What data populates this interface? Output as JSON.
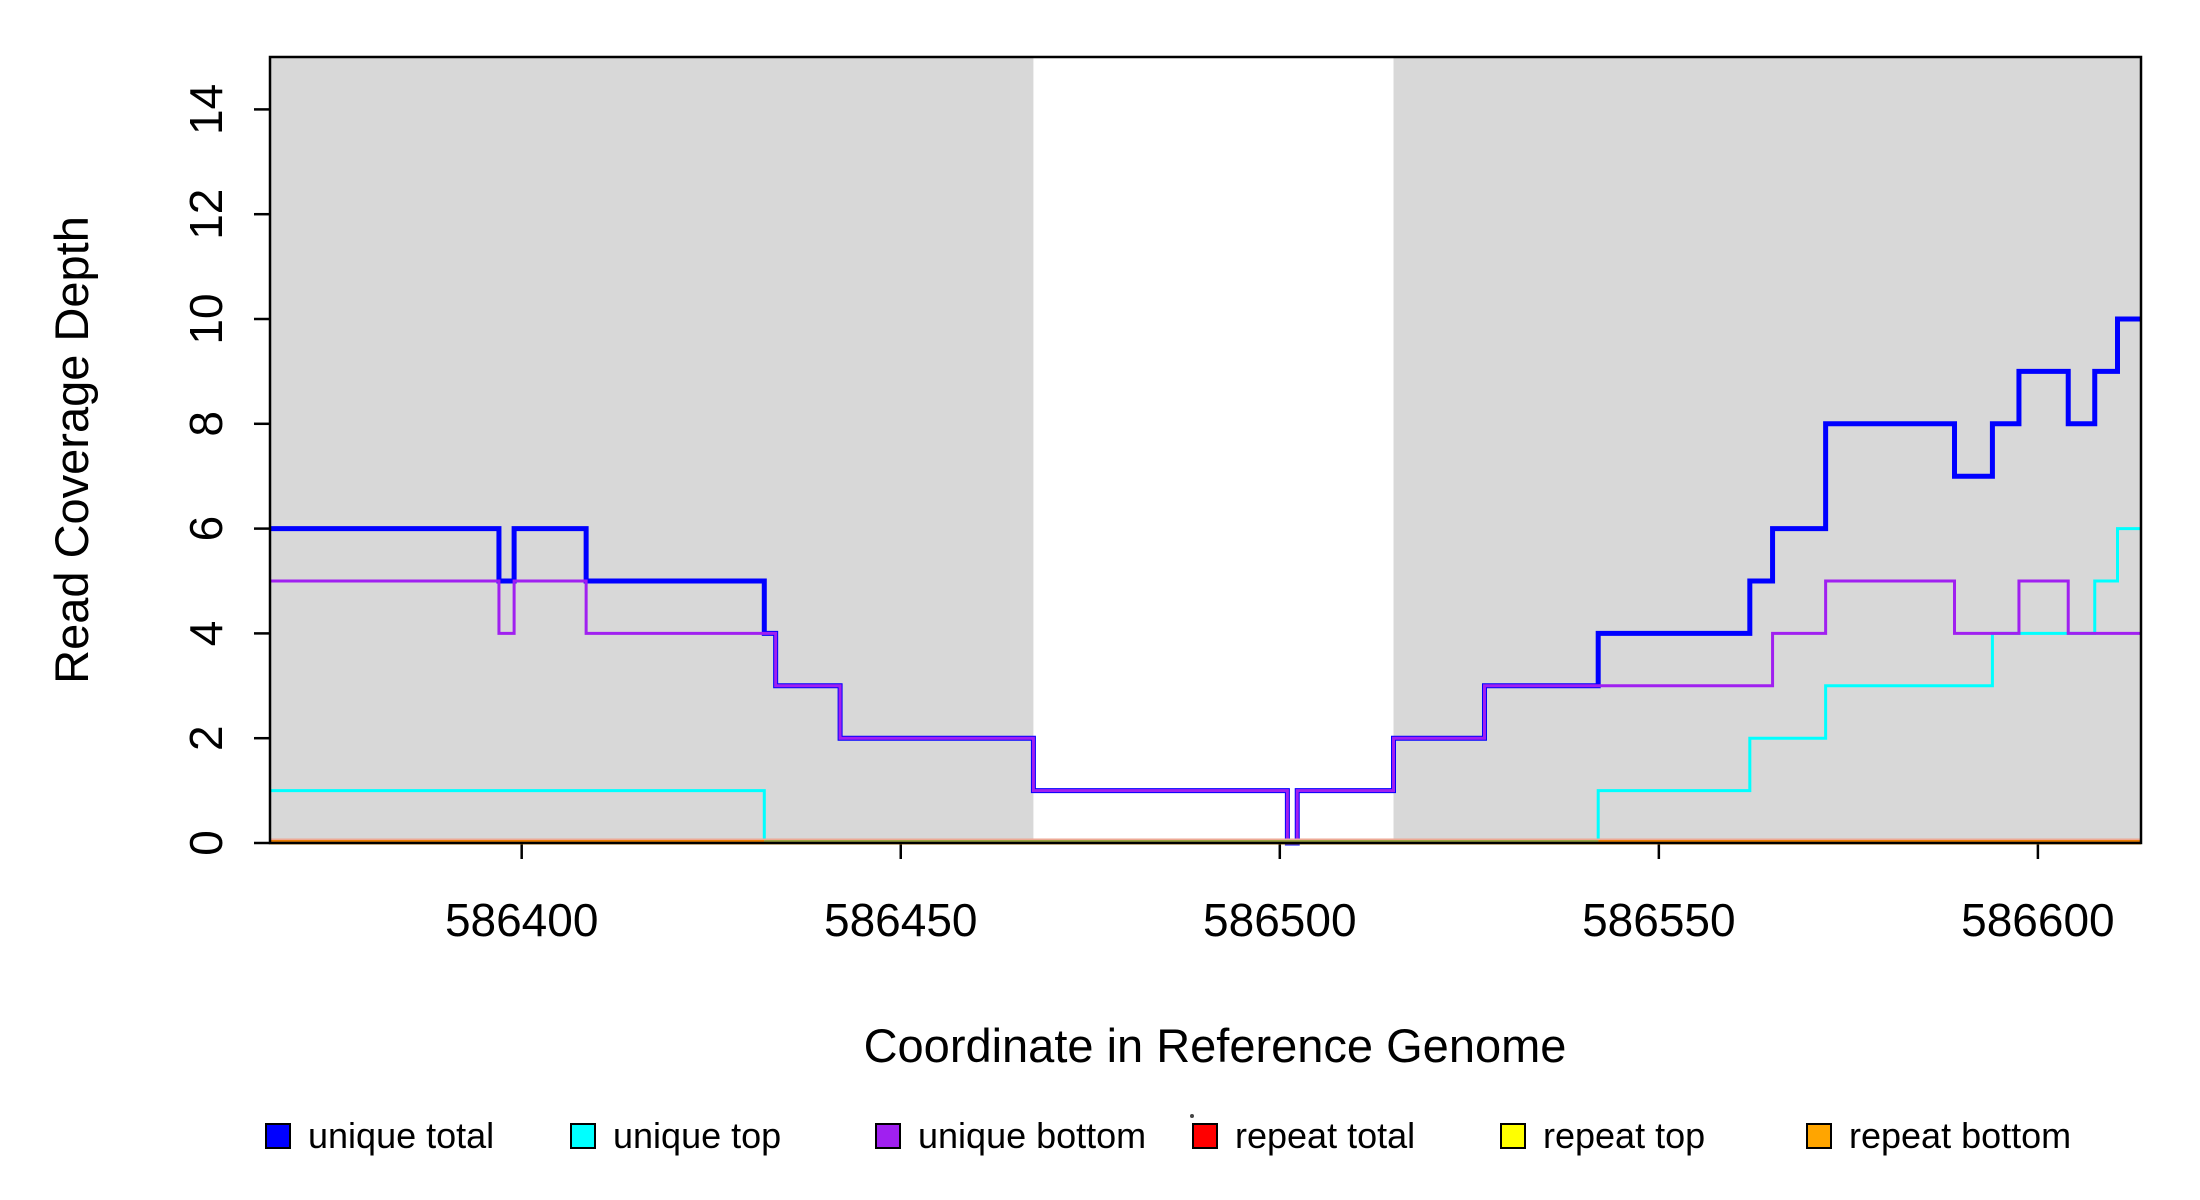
{
  "figure": {
    "background": "#ffffff"
  },
  "chart_data": {
    "type": "line",
    "subtype": "step",
    "title": "",
    "xlabel": "Coordinate in Reference Genome",
    "ylabel": "Read Coverage Depth",
    "xlim": [
      586366.8,
      586613.6
    ],
    "ylim": [
      0,
      15
    ],
    "x_tick_values": [
      586400,
      586450,
      586500,
      586550,
      586600
    ],
    "x_tick_labels": [
      "586400",
      "586450",
      "586500",
      "586550",
      "586600"
    ],
    "y_tick_values": [
      0,
      2,
      4,
      6,
      8,
      10,
      12,
      14
    ],
    "y_tick_labels": [
      "0",
      "2",
      "4",
      "6",
      "8",
      "10",
      "12",
      "14"
    ],
    "grid": false,
    "legend_position": "bottom-horizontal",
    "shaded_regions": [
      {
        "name": "gray-band-left",
        "x0": 586366.8,
        "x1": 586467.5,
        "color": "#d8d8d8"
      },
      {
        "name": "gray-band-right",
        "x0": 586515.0,
        "x1": 586613.6,
        "color": "#d8d8d8"
      }
    ],
    "series": [
      {
        "name": "unique total",
        "color": "#0000ff",
        "width": 5,
        "steps": [
          [
            586366.8,
            6
          ],
          [
            586397,
            5
          ],
          [
            586399,
            6
          ],
          [
            586408.5,
            5
          ],
          [
            586432,
            4
          ],
          [
            586433.5,
            3
          ],
          [
            586442,
            2
          ],
          [
            586467.5,
            1
          ],
          [
            586501,
            0
          ],
          [
            586502.3,
            1
          ],
          [
            586515,
            2
          ],
          [
            586527,
            3
          ],
          [
            586542,
            4
          ],
          [
            586562,
            5
          ],
          [
            586565,
            6
          ],
          [
            586572,
            8
          ],
          [
            586589,
            7
          ],
          [
            586594,
            8
          ],
          [
            586597.5,
            9
          ],
          [
            586604,
            8
          ],
          [
            586607.5,
            9
          ],
          [
            586610.5,
            10
          ]
        ]
      },
      {
        "name": "unique top",
        "color": "#00ffff",
        "width": 3,
        "steps": [
          [
            586366.8,
            1
          ],
          [
            586432,
            0
          ],
          [
            586542,
            1
          ],
          [
            586562,
            2
          ],
          [
            586572,
            3
          ],
          [
            586594,
            4
          ],
          [
            586607.5,
            5
          ],
          [
            586610.5,
            6
          ]
        ]
      },
      {
        "name": "unique bottom",
        "color": "#a020f0",
        "width": 3,
        "steps": [
          [
            586366.8,
            5
          ],
          [
            586397,
            4
          ],
          [
            586399,
            5
          ],
          [
            586408.5,
            4
          ],
          [
            586433.5,
            3
          ],
          [
            586442,
            2
          ],
          [
            586467.5,
            1
          ],
          [
            586501,
            0
          ],
          [
            586502.3,
            1
          ],
          [
            586515,
            2
          ],
          [
            586527,
            3
          ],
          [
            586565,
            4
          ],
          [
            586572,
            5
          ],
          [
            586589,
            4
          ],
          [
            586597.5,
            5
          ],
          [
            586604,
            4
          ]
        ]
      },
      {
        "name": "repeat total",
        "color": "#ff0000",
        "width": 3,
        "steps": [
          [
            586366.8,
            0
          ]
        ]
      },
      {
        "name": "repeat top",
        "color": "#ffff00",
        "width": 3,
        "steps": [
          [
            586366.8,
            0
          ]
        ]
      },
      {
        "name": "repeat bottom",
        "color": "#ffa500",
        "width": 3,
        "steps": [
          [
            586366.8,
            0
          ]
        ]
      }
    ],
    "zero_line_overlay": {
      "top_edge_color": "#edaa96",
      "segments": [
        {
          "x0": 586366.8,
          "x1": 586432.0,
          "color": "#e87d00"
        },
        {
          "x0": 586432.0,
          "x1": 586542.0,
          "color": "#9aa23f"
        },
        {
          "x0": 586542.0,
          "x1": 586613.6,
          "color": "#e87d00"
        }
      ]
    },
    "legend": {
      "items": [
        {
          "label": "unique total",
          "color": "#0000ff"
        },
        {
          "label": "unique top",
          "color": "#00ffff"
        },
        {
          "label": "unique bottom",
          "color": "#a020f0"
        },
        {
          "label": "repeat total",
          "color": "#ff0000"
        },
        {
          "label": "repeat top",
          "color": "#ffff00"
        },
        {
          "label": "repeat bottom",
          "color": "#ffa500"
        }
      ]
    }
  }
}
